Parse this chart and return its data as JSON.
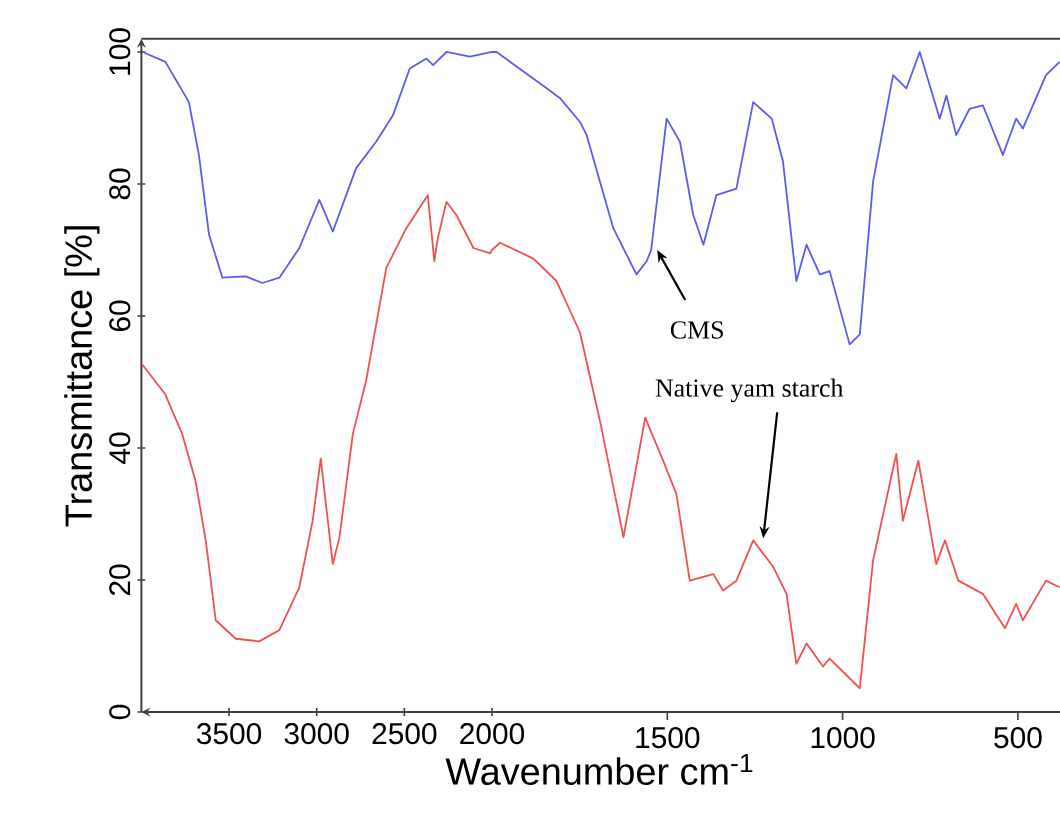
{
  "chart_data": [
    {
      "type": "line",
      "ylabel": "Transmittance [%]",
      "xlim": [
        4000,
        2000
      ],
      "xticks": [
        3500,
        3000,
        2500,
        2000
      ],
      "ylim": [
        0,
        102
      ],
      "yticks": [
        0,
        20,
        40,
        60,
        80,
        100
      ],
      "series": [
        {
          "color": "#5b5bf0",
          "x": [
            3992,
            3863,
            3729,
            3672,
            3614,
            3538,
            3405,
            3309,
            3213,
            3099,
            2985,
            2908,
            2775,
            2661,
            2565,
            2469,
            2374,
            2336,
            2260,
            2126,
            2000
          ],
          "values": [
            100,
            98.5,
            92.4,
            84.4,
            72.3,
            65.8,
            66,
            65,
            65.8,
            70.3,
            77.6,
            72.8,
            82.4,
            86.4,
            90.4,
            97.5,
            99,
            98,
            100,
            99.3,
            100
          ]
        },
        {
          "color": "#f05050",
          "x": [
            3996,
            3863,
            3767,
            3691,
            3633,
            3576,
            3462,
            3328,
            3213,
            3099,
            3023,
            2977,
            2908,
            2870,
            2794,
            2718,
            2603,
            2489,
            2366,
            2329,
            2309,
            2260,
            2203,
            2106,
            2011,
            2000
          ],
          "values": [
            52.7,
            48.1,
            42.1,
            35,
            26,
            13.9,
            11.1,
            10.7,
            12.4,
            18.9,
            29,
            38.4,
            22.4,
            26.5,
            42.1,
            50.2,
            67.3,
            73.3,
            78.3,
            68.3,
            71.8,
            77.3,
            75.3,
            70.3,
            69.5,
            70
          ]
        }
      ]
    },
    {
      "type": "line",
      "xlabel": "Wavenumber cm$^{-1}$",
      "xlim": [
        2000,
        380
      ],
      "xticks": [
        1500,
        1000,
        500
      ],
      "ylim": [
        0,
        102
      ],
      "tick_labels": "x",
      "annotations": [
        {
          "text": "CMS",
          "x": 1546,
          "y": 70
        },
        {
          "text": "Native yam starch",
          "x": 1255,
          "y": 26
        }
      ],
      "series": [
        {
          "color": "#5b5bf0",
          "x": [
            2000,
            1987,
            1844,
            1806,
            1749,
            1730,
            1654,
            1588,
            1559,
            1546,
            1502,
            1464,
            1426,
            1397,
            1360,
            1303,
            1255,
            1202,
            1170,
            1132,
            1103,
            1065,
            1037,
            980,
            951,
            913,
            856,
            818,
            780,
            723,
            704,
            676,
            638,
            600,
            543,
            505,
            486,
            420,
            381
          ],
          "values": [
            100,
            100,
            94.5,
            93,
            89.4,
            87.4,
            73.3,
            66.3,
            68.3,
            70,
            89.9,
            86.4,
            75.3,
            70.8,
            78.3,
            79.3,
            92.4,
            89.9,
            83.4,
            65.3,
            70.8,
            66.3,
            66.8,
            55.7,
            57.2,
            80.4,
            96.5,
            94.5,
            100,
            89.9,
            93.4,
            87.4,
            91.4,
            91.9,
            84.4,
            89.9,
            88.4,
            96.5,
            98.5
          ]
        },
        {
          "color": "#f05050",
          "x": [
            2000,
            1977,
            1882,
            1816,
            1749,
            1692,
            1625,
            1563,
            1512,
            1474,
            1436,
            1369,
            1341,
            1303,
            1255,
            1198,
            1160,
            1132,
            1103,
            1056,
            1037,
            951,
            913,
            847,
            828,
            784,
            733,
            708,
            670,
            600,
            537,
            505,
            486,
            420,
            381
          ],
          "values": [
            70,
            71.1,
            68.7,
            65.3,
            57.5,
            44.1,
            26.5,
            44.6,
            38.1,
            33,
            19.9,
            20.9,
            18.4,
            19.9,
            26,
            22,
            17.9,
            7.3,
            10.4,
            6.9,
            8.1,
            3.6,
            23,
            39.1,
            29,
            38.1,
            22.4,
            26,
            19.9,
            17.9,
            12.7,
            16.4,
            13.9,
            19.9,
            18.9
          ]
        }
      ]
    }
  ]
}
